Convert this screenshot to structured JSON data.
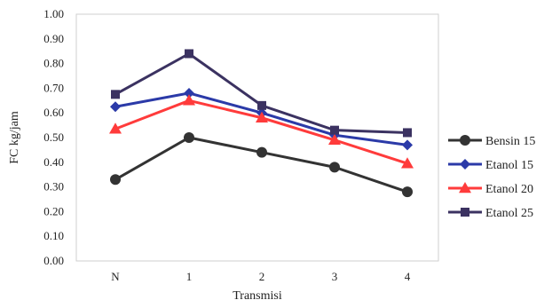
{
  "chart_data": {
    "type": "line",
    "title": "",
    "xlabel": "Transmisi",
    "ylabel": "FC kg/jam",
    "categories": [
      "N",
      "1",
      "2",
      "3",
      "4"
    ],
    "ylim": [
      0,
      1.0
    ],
    "yticks": [
      "0.00",
      "0.10",
      "0.20",
      "0.30",
      "0.40",
      "0.50",
      "0.60",
      "0.70",
      "0.80",
      "0.90",
      "1.00"
    ],
    "grid": false,
    "legend_position": "right",
    "series": [
      {
        "name": "Bensin 15",
        "values": [
          0.33,
          0.5,
          0.44,
          0.38,
          0.28
        ],
        "color": "#333333",
        "marker": "circle"
      },
      {
        "name": "Etanol 15",
        "values": [
          0.625,
          0.68,
          0.6,
          0.51,
          0.47
        ],
        "color": "#2b3aa8",
        "marker": "diamond"
      },
      {
        "name": "Etanol 20",
        "values": [
          0.535,
          0.65,
          0.58,
          0.49,
          0.395
        ],
        "color": "#ff3b3b",
        "marker": "triangle"
      },
      {
        "name": "Etanol 25",
        "values": [
          0.675,
          0.84,
          0.63,
          0.53,
          0.52
        ],
        "color": "#3b3261",
        "marker": "square"
      }
    ]
  }
}
